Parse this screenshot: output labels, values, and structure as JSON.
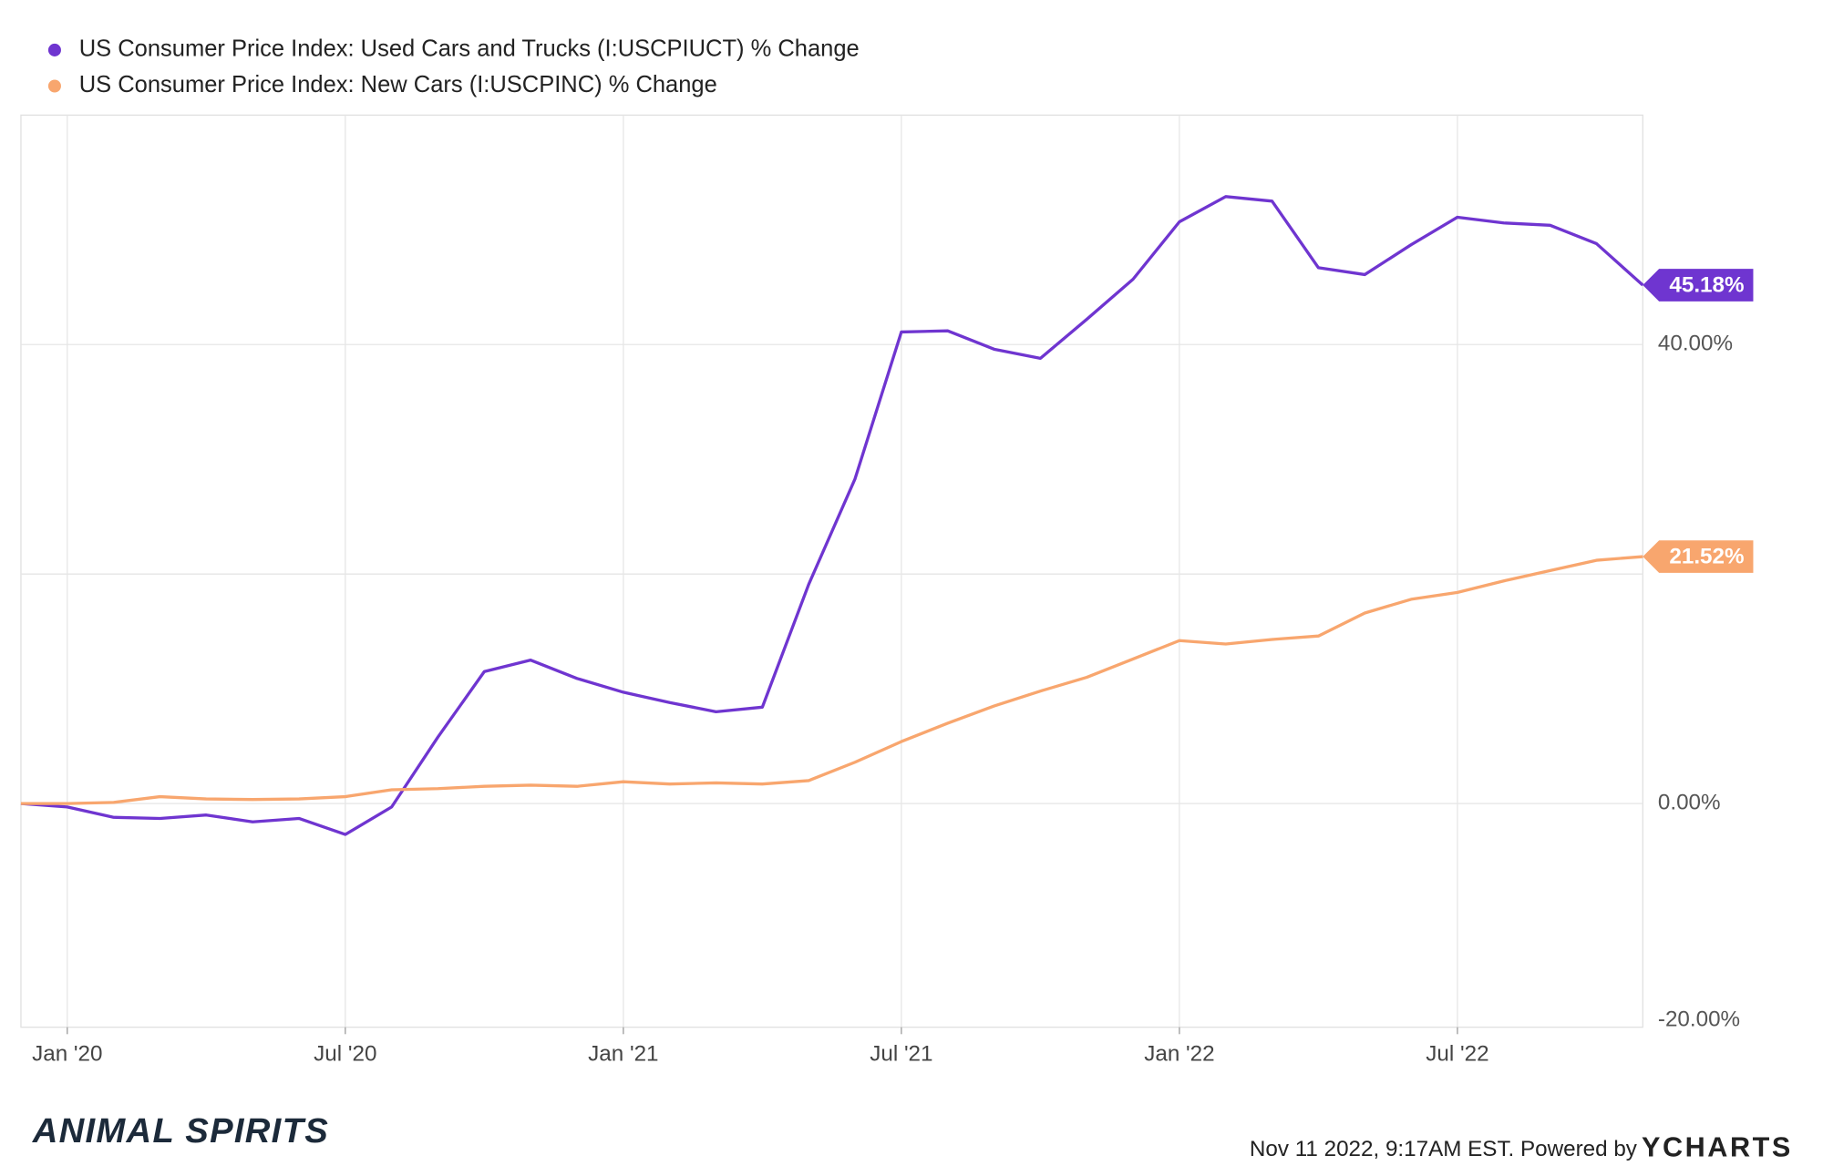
{
  "chart_data": {
    "type": "line",
    "x": [
      "2019-12",
      "2020-01",
      "2020-02",
      "2020-03",
      "2020-04",
      "2020-05",
      "2020-06",
      "2020-07",
      "2020-08",
      "2020-09",
      "2020-10",
      "2020-11",
      "2020-12",
      "2021-01",
      "2021-02",
      "2021-03",
      "2021-04",
      "2021-05",
      "2021-06",
      "2021-07",
      "2021-08",
      "2021-09",
      "2021-10",
      "2021-11",
      "2021-12",
      "2022-01",
      "2022-02",
      "2022-03",
      "2022-04",
      "2022-05",
      "2022-06",
      "2022-07",
      "2022-08",
      "2022-09",
      "2022-10",
      "2022-11"
    ],
    "series": [
      {
        "name": "US Consumer Price Index: Used Cars and Trucks (I:USCPIUCT) % Change",
        "color": "#6f35d0",
        "values": [
          0,
          -0.3,
          -1.2,
          -1.3,
          -1.0,
          -1.6,
          -1.3,
          -2.7,
          -0.3,
          5.8,
          11.5,
          12.5,
          10.9,
          9.7,
          8.8,
          8.0,
          8.4,
          19.1,
          28.3,
          41.1,
          41.2,
          39.6,
          38.8,
          42.2,
          45.7,
          50.7,
          52.9,
          52.5,
          46.7,
          46.1,
          48.7,
          51.1,
          50.6,
          50.4,
          48.8,
          45.18
        ],
        "value_labels": [
          null,
          null,
          null,
          null,
          null,
          null,
          null,
          null,
          null,
          null,
          null,
          null,
          null,
          null,
          null,
          null,
          null,
          null,
          null,
          null,
          null,
          null,
          null,
          null,
          null,
          null,
          null,
          null,
          null,
          null,
          null,
          null,
          null,
          null,
          null,
          "45.18%"
        ]
      },
      {
        "name": "US Consumer Price Index: New Cars (I:USCPINC) % Change",
        "color": "#f8a66e",
        "values": [
          0,
          0,
          0.1,
          0.6,
          0.4,
          0.35,
          0.4,
          0.6,
          1.2,
          1.3,
          1.5,
          1.6,
          1.5,
          1.9,
          1.7,
          1.8,
          1.7,
          2.0,
          3.6,
          5.4,
          7.0,
          8.5,
          9.8,
          11.0,
          12.6,
          14.2,
          13.9,
          14.3,
          14.6,
          16.6,
          17.8,
          18.4,
          19.4,
          20.3,
          21.2,
          21.52
        ],
        "value_labels": [
          null,
          null,
          null,
          null,
          null,
          null,
          null,
          null,
          null,
          null,
          null,
          null,
          null,
          null,
          null,
          null,
          null,
          null,
          null,
          null,
          null,
          null,
          null,
          null,
          null,
          null,
          null,
          null,
          null,
          null,
          null,
          null,
          null,
          null,
          null,
          "21.52%"
        ]
      }
    ],
    "ylim": [
      -20,
      60
    ],
    "yticks": [
      {
        "value": -20,
        "label": "-20.00%"
      },
      {
        "value": 0,
        "label": "0.00%"
      },
      {
        "value": 20,
        "label": null
      },
      {
        "value": 40,
        "label": "40.00%"
      }
    ],
    "xticks": [
      {
        "value": "2020-01",
        "label": "Jan '20"
      },
      {
        "value": "2020-07",
        "label": "Jul '20"
      },
      {
        "value": "2021-01",
        "label": "Jan '21"
      },
      {
        "value": "2021-07",
        "label": "Jul '21"
      },
      {
        "value": "2022-01",
        "label": "Jan '22"
      },
      {
        "value": "2022-07",
        "label": "Jul '22"
      }
    ],
    "grid": true,
    "legend": "top-left"
  },
  "footer": {
    "brand": "ANIMAL SPIRITS",
    "timestamp": "Nov 11 2022, 9:17AM EST. Powered by",
    "logo": "YCHARTS"
  }
}
